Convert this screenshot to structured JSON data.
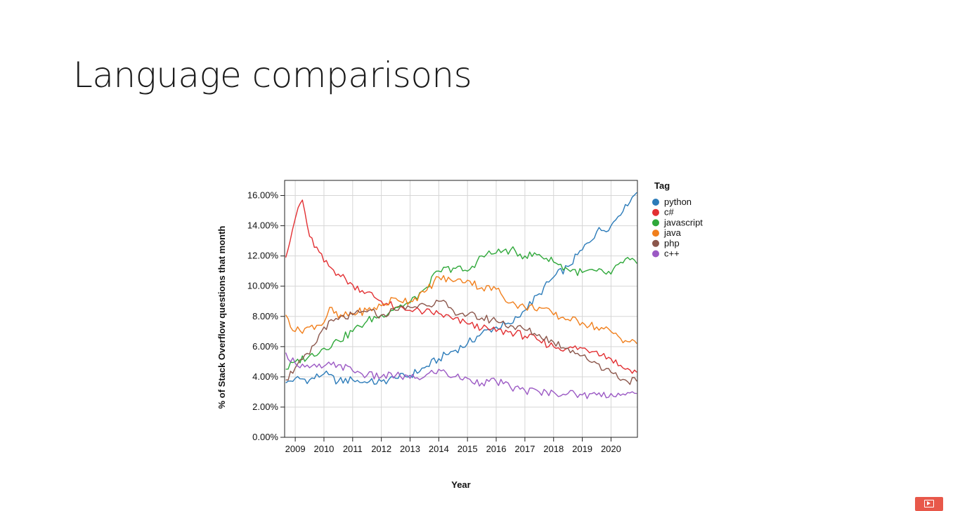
{
  "slide": {
    "title": "Language comparisons"
  },
  "controls": {
    "video_icon": "play-video-icon",
    "video_color": "#e8584a"
  },
  "chart_data": {
    "type": "line",
    "xlabel": "Year",
    "ylabel": "% of Stack Overflow questions that month",
    "xlim": [
      2008.63,
      2020.92
    ],
    "ylim": [
      0,
      17
    ],
    "x_ticks": [
      2009,
      2010,
      2011,
      2012,
      2013,
      2014,
      2015,
      2016,
      2017,
      2018,
      2019,
      2020
    ],
    "y_ticks": [
      0,
      2,
      4,
      6,
      8,
      10,
      12,
      14,
      16
    ],
    "y_tick_labels": [
      "0.00%",
      "2.00%",
      "4.00%",
      "6.00%",
      "8.00%",
      "10.00%",
      "12.00%",
      "14.00%",
      "16.00%"
    ],
    "grid": true,
    "legend": {
      "title": "Tag",
      "placement": "right"
    },
    "series": [
      {
        "name": "python",
        "color": "#2b7bb9",
        "x": [
          2008.67,
          2009.0,
          2009.5,
          2010.0,
          2010.5,
          2011.0,
          2011.5,
          2012.0,
          2012.5,
          2013.0,
          2013.5,
          2014.0,
          2014.5,
          2015.0,
          2015.5,
          2016.0,
          2016.5,
          2017.0,
          2017.5,
          2018.0,
          2018.5,
          2019.0,
          2019.5,
          2020.0,
          2020.5,
          2020.9
        ],
        "values": [
          3.6,
          3.9,
          3.8,
          4.2,
          3.7,
          3.8,
          3.6,
          3.7,
          3.9,
          4.1,
          4.6,
          5.2,
          5.7,
          6.2,
          6.9,
          7.3,
          7.5,
          8.4,
          9.5,
          10.6,
          11.3,
          12.4,
          13.6,
          14.0,
          15.4,
          16.2
        ]
      },
      {
        "name": "c#",
        "color": "#e22f32",
        "x": [
          2008.67,
          2008.9,
          2009.1,
          2009.25,
          2009.5,
          2010.0,
          2010.5,
          2011.0,
          2011.5,
          2012.0,
          2012.5,
          2013.0,
          2013.5,
          2014.0,
          2014.5,
          2015.0,
          2015.5,
          2016.0,
          2016.5,
          2017.0,
          2017.5,
          2018.0,
          2018.5,
          2019.0,
          2019.5,
          2020.0,
          2020.5,
          2020.9
        ],
        "values": [
          11.9,
          13.7,
          15.2,
          15.7,
          13.3,
          11.6,
          10.8,
          10.1,
          9.6,
          9.0,
          8.6,
          8.4,
          8.3,
          8.2,
          7.8,
          7.5,
          7.2,
          7.0,
          7.0,
          6.7,
          6.4,
          6.0,
          5.9,
          5.9,
          5.7,
          5.2,
          4.5,
          4.3
        ]
      },
      {
        "name": "javascript",
        "color": "#2fa83a",
        "x": [
          2008.67,
          2009.0,
          2009.5,
          2010.0,
          2010.5,
          2011.0,
          2011.5,
          2012.0,
          2012.5,
          2013.0,
          2013.5,
          2014.0,
          2014.5,
          2015.0,
          2015.5,
          2016.0,
          2016.5,
          2017.0,
          2017.5,
          2018.0,
          2018.5,
          2019.0,
          2019.5,
          2020.0,
          2020.5,
          2020.9
        ],
        "values": [
          4.5,
          5.0,
          5.4,
          5.9,
          6.4,
          7.0,
          7.7,
          8.1,
          8.6,
          8.9,
          9.8,
          11.0,
          11.2,
          11.0,
          12.0,
          12.2,
          12.4,
          12.0,
          12.1,
          11.6,
          11.1,
          10.9,
          11.0,
          10.8,
          11.8,
          11.5
        ]
      },
      {
        "name": "java",
        "color": "#f17f1c",
        "x": [
          2008.67,
          2009.0,
          2009.5,
          2010.0,
          2010.2,
          2010.5,
          2011.0,
          2011.5,
          2012.0,
          2012.5,
          2013.0,
          2013.5,
          2014.0,
          2014.5,
          2015.0,
          2015.5,
          2016.0,
          2016.5,
          2017.0,
          2017.5,
          2018.0,
          2018.5,
          2019.0,
          2019.5,
          2020.0,
          2020.5,
          2020.9
        ],
        "values": [
          8.1,
          7.0,
          7.3,
          7.6,
          8.6,
          7.9,
          8.2,
          8.4,
          8.7,
          9.2,
          9.0,
          9.6,
          10.6,
          10.3,
          10.4,
          9.9,
          9.8,
          8.9,
          8.6,
          8.6,
          8.1,
          7.8,
          7.6,
          7.3,
          7.0,
          6.4,
          6.2
        ]
      },
      {
        "name": "php",
        "color": "#8b564b",
        "x": [
          2008.67,
          2009.0,
          2009.5,
          2010.0,
          2010.5,
          2011.0,
          2011.5,
          2012.0,
          2012.5,
          2013.0,
          2013.5,
          2014.0,
          2014.5,
          2015.0,
          2015.5,
          2016.0,
          2016.5,
          2017.0,
          2017.5,
          2018.0,
          2018.5,
          2019.0,
          2019.5,
          2020.0,
          2020.5,
          2020.9
        ],
        "values": [
          3.8,
          4.6,
          5.5,
          7.3,
          7.8,
          8.1,
          8.3,
          8.1,
          8.4,
          8.6,
          8.8,
          9.0,
          8.4,
          8.1,
          7.9,
          7.7,
          7.4,
          7.1,
          6.8,
          6.3,
          5.9,
          5.4,
          4.9,
          4.3,
          3.8,
          3.7
        ]
      },
      {
        "name": "c++",
        "color": "#9b59c4",
        "x": [
          2008.67,
          2009.0,
          2009.5,
          2010.0,
          2010.5,
          2011.0,
          2011.5,
          2012.0,
          2012.5,
          2013.0,
          2013.5,
          2014.0,
          2014.5,
          2015.0,
          2015.5,
          2016.0,
          2016.5,
          2017.0,
          2017.5,
          2018.0,
          2018.5,
          2019.0,
          2019.5,
          2020.0,
          2020.5,
          2020.9
        ],
        "values": [
          5.6,
          4.9,
          4.6,
          4.7,
          4.8,
          4.4,
          4.1,
          4.0,
          4.1,
          3.9,
          4.0,
          4.5,
          4.0,
          3.9,
          3.6,
          3.7,
          3.3,
          3.1,
          3.0,
          3.0,
          2.9,
          2.8,
          2.8,
          2.9,
          2.8,
          2.9
        ]
      }
    ]
  }
}
